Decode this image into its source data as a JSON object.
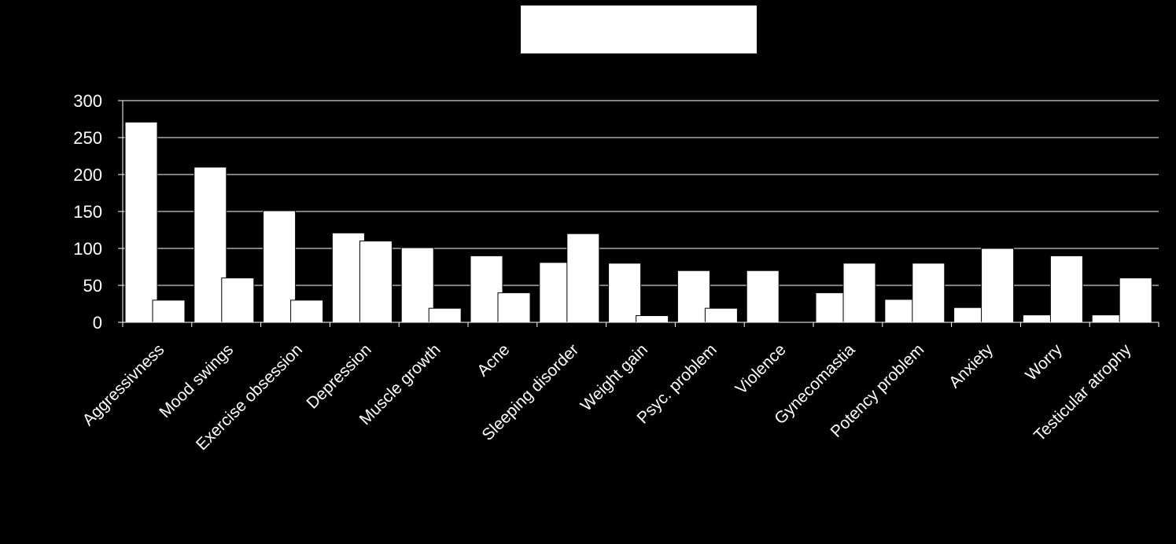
{
  "chart_data": {
    "type": "bar",
    "categories": [
      "Aggressivness",
      "Mood swings",
      "Exercise obsession",
      "Depression",
      "Muscle growth",
      "Acne",
      "Sleeping disorder",
      "Weight gain",
      "Psyc. problem",
      "Violence",
      "Gynecomastia",
      "Potency problem",
      "Anxiety",
      "Worry",
      "Testicular atrophy"
    ],
    "series": [
      {
        "values": [
          271,
          210,
          151,
          121,
          101,
          90,
          81,
          80,
          70,
          70,
          40,
          31,
          20,
          10,
          10
        ]
      },
      {
        "values": [
          30,
          60,
          30,
          110,
          19,
          40,
          120,
          9,
          19,
          0,
          80,
          80,
          100,
          90,
          60
        ]
      }
    ],
    "title": "",
    "xlabel": "",
    "ylabel": "",
    "ylim": [
      0,
      300
    ],
    "yticks": [
      "0",
      "50",
      "100",
      "150",
      "200",
      "250",
      "300"
    ],
    "grid": true,
    "legend": "top-center",
    "colors": {
      "background": "#000000",
      "bars": "#ffffff",
      "axis": "#ffffff",
      "grid": "#ffffff"
    }
  }
}
